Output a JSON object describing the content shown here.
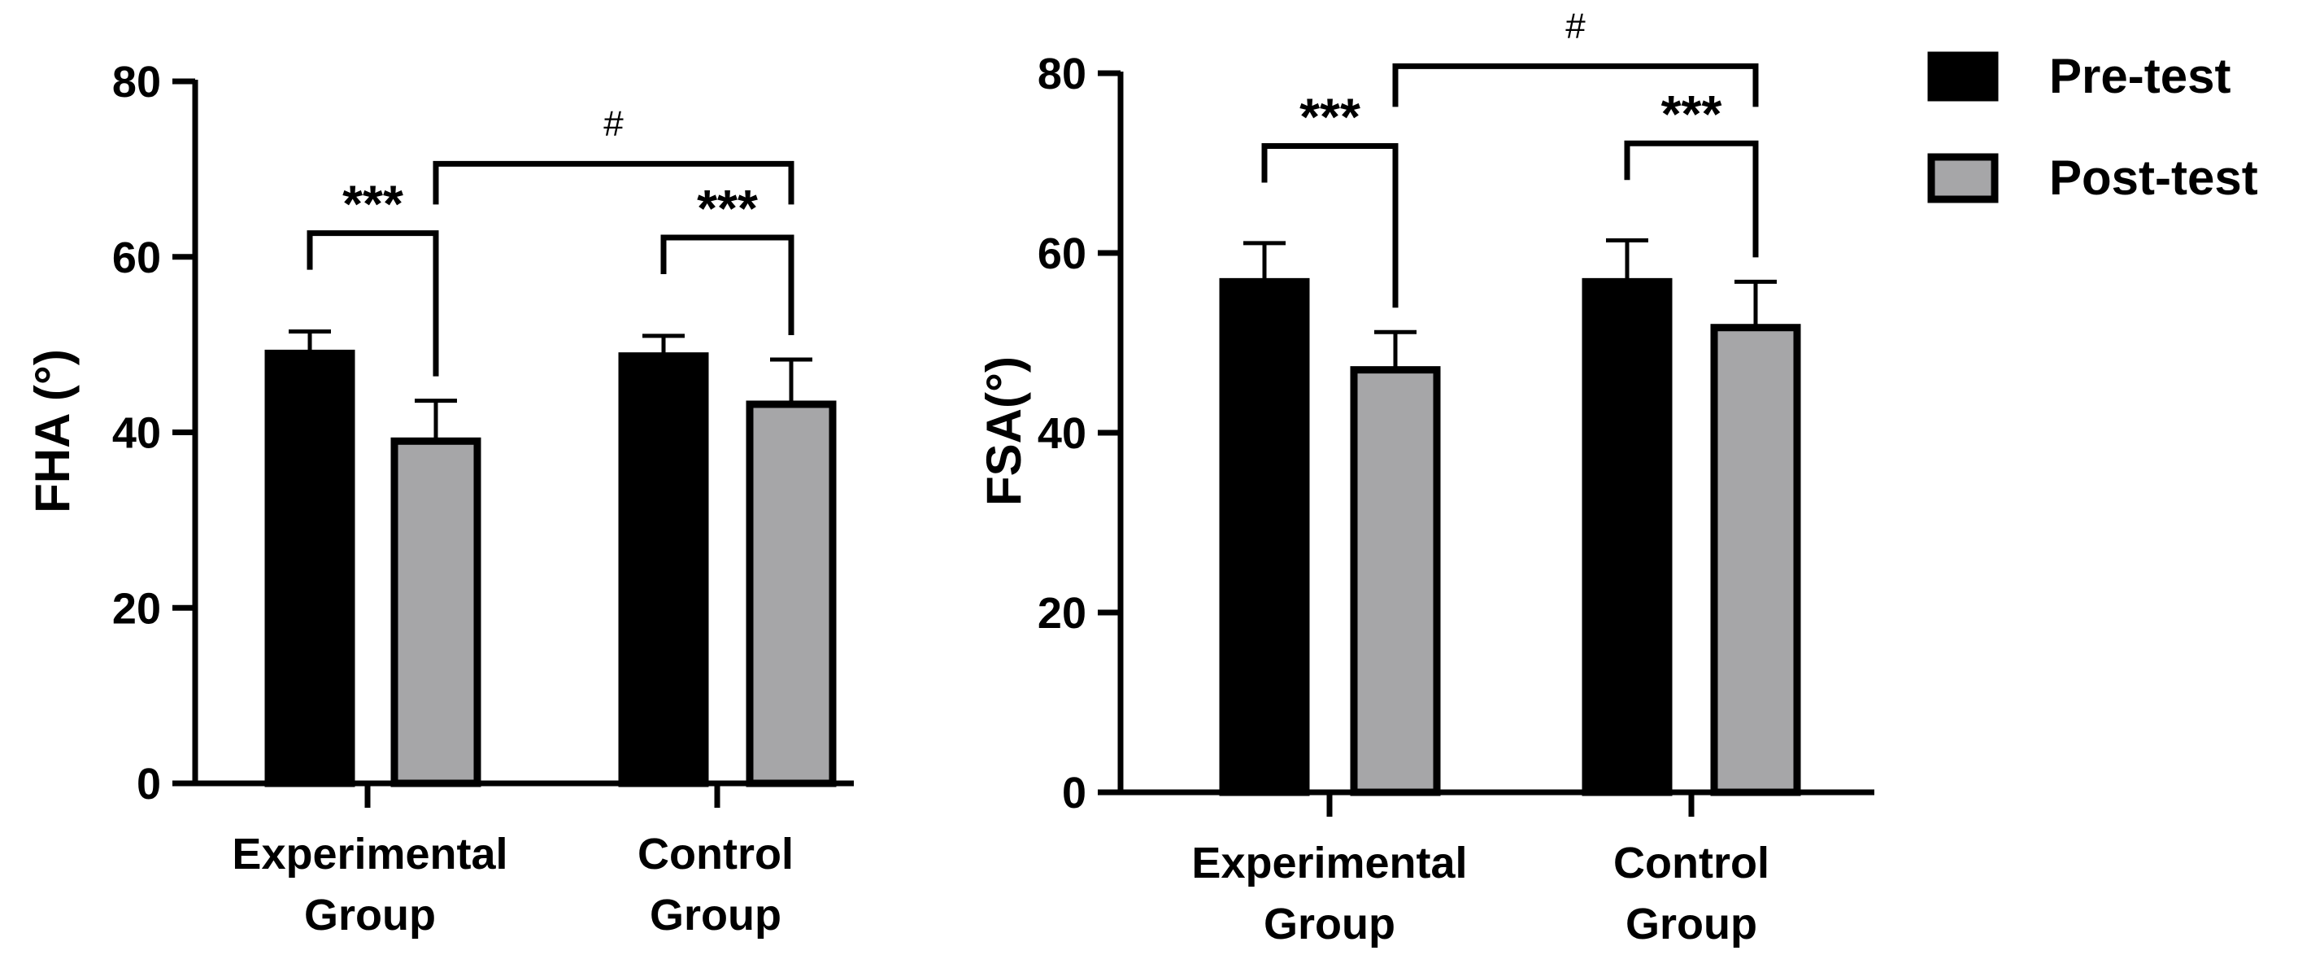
{
  "legend": {
    "items": [
      {
        "label": "Pre-test",
        "color": "#000000"
      },
      {
        "label": "Post-test",
        "color": "#a6a6a8"
      }
    ]
  },
  "chart_data": [
    {
      "type": "bar",
      "title": "",
      "xlabel": "",
      "ylabel": "FHA (°)",
      "ylim": [
        0,
        80
      ],
      "yticks": [
        "0",
        "20",
        "40",
        "60",
        "80"
      ],
      "categories": [
        {
          "line1": "Experimental",
          "line2": "Group"
        },
        {
          "line1": "Control",
          "line2": "Group"
        }
      ],
      "series": [
        {
          "name": "Pre-test",
          "color": "#000000",
          "values": [
            49,
            48.7
          ],
          "errors": [
            2.5,
            2.3
          ]
        },
        {
          "name": "Post-test",
          "color": "#a6a6a8",
          "values": [
            39,
            43.2
          ],
          "errors": [
            4.6,
            5.1
          ]
        }
      ],
      "annotations": [
        {
          "label": "***",
          "type": "within",
          "category": 0
        },
        {
          "label": "***",
          "type": "within",
          "category": 1
        },
        {
          "label": "#",
          "type": "between"
        }
      ]
    },
    {
      "type": "bar",
      "title": "",
      "xlabel": "",
      "ylabel": "FSA(°)",
      "ylim": [
        0,
        80
      ],
      "yticks": [
        "0",
        "20",
        "40",
        "60",
        "80"
      ],
      "categories": [
        {
          "line1": "Experimental",
          "line2": "Group"
        },
        {
          "line1": "Control",
          "line2": "Group"
        }
      ],
      "series": [
        {
          "name": "Pre-test",
          "color": "#000000",
          "values": [
            56.8,
            56.8
          ],
          "errors": [
            4.3,
            4.6
          ]
        },
        {
          "name": "Post-test",
          "color": "#a6a6a8",
          "values": [
            47,
            51.7
          ],
          "errors": [
            4.2,
            5.1
          ]
        }
      ],
      "annotations": [
        {
          "label": "***",
          "type": "within",
          "category": 0
        },
        {
          "label": "***",
          "type": "within",
          "category": 1
        },
        {
          "label": "#",
          "type": "between"
        }
      ]
    }
  ]
}
